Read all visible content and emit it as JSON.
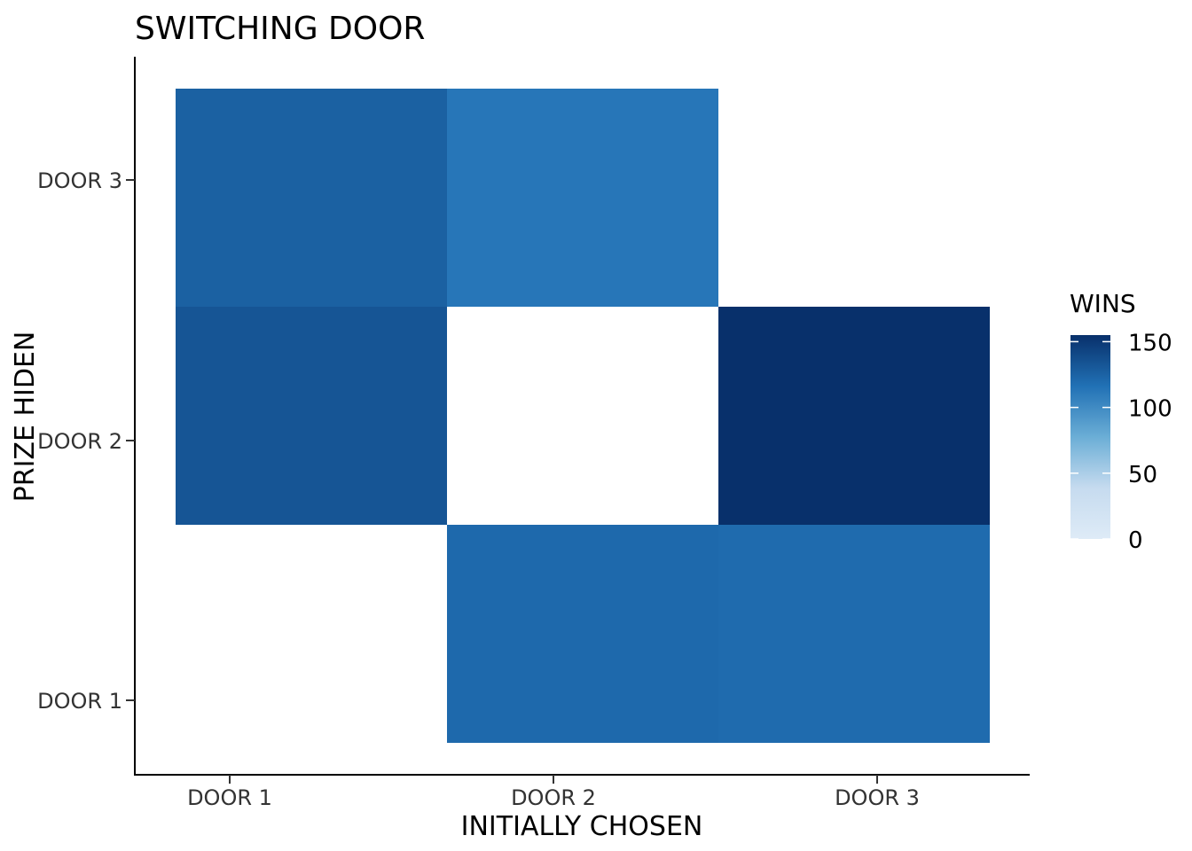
{
  "chart_data": {
    "type": "heatmap",
    "title": "SWITCHING DOOR",
    "xlabel": "INITIALLY CHOSEN",
    "ylabel": "PRIZE HIDEN",
    "x_categories": [
      "DOOR 1",
      "DOOR 2",
      "DOOR 3"
    ],
    "y_categories": [
      "DOOR 1",
      "DOOR 2",
      "DOOR 3"
    ],
    "cells": [
      {
        "x": "DOOR 2",
        "y": "DOOR 1",
        "value": 121
      },
      {
        "x": "DOOR 3",
        "y": "DOOR 1",
        "value": 120
      },
      {
        "x": "DOOR 1",
        "y": "DOOR 2",
        "value": 133
      },
      {
        "x": "DOOR 3",
        "y": "DOOR 2",
        "value": 155
      },
      {
        "x": "DOOR 1",
        "y": "DOOR 3",
        "value": 126
      },
      {
        "x": "DOOR 2",
        "y": "DOOR 3",
        "value": 113
      }
    ],
    "legend": {
      "title": "WINS",
      "min": 0,
      "max": 155,
      "breaks": [
        0,
        50,
        100,
        150
      ],
      "breaks_labels": [
        "0",
        "50",
        "100",
        "150"
      ],
      "low_color": "#deebf7",
      "high_color": "#08306b",
      "placement": "right"
    },
    "grid": false
  }
}
